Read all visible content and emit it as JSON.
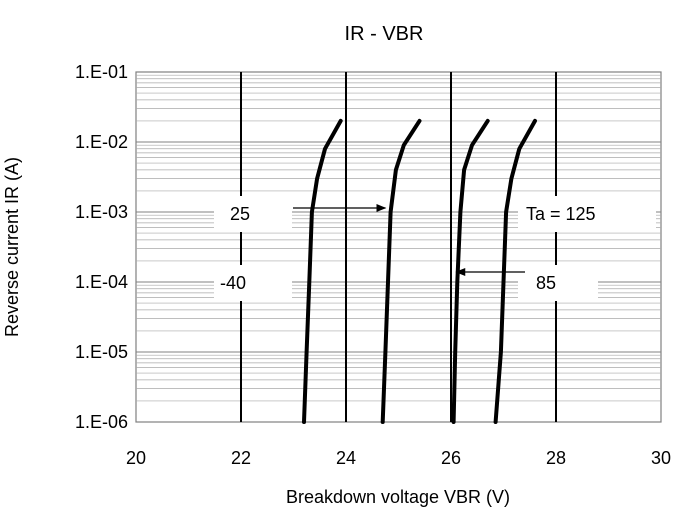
{
  "chart_data": {
    "type": "line",
    "title": "IR - VBR",
    "xlabel": "Breakdown voltage VBR (V)",
    "ylabel": "Reverse current IR (A)",
    "xlim": [
      20,
      30
    ],
    "ylim": [
      1e-06,
      0.1
    ],
    "y_scale": "log",
    "grid": true,
    "x_ticks": [
      "20",
      "22",
      "24",
      "26",
      "28",
      "30"
    ],
    "y_ticks": [
      "1.E-06",
      "1.E-05",
      "1.E-04",
      "1.E-03",
      "1.E-02",
      "1.E-01"
    ],
    "series": [
      {
        "name": "-40",
        "x": [
          23.2,
          23.25,
          23.3,
          23.35,
          23.45,
          23.6,
          23.9
        ],
        "y": [
          1e-06,
          1e-05,
          0.0001,
          0.001,
          0.003,
          0.008,
          0.02
        ]
      },
      {
        "name": "25",
        "x": [
          24.7,
          24.75,
          24.8,
          24.85,
          24.95,
          25.1,
          25.4
        ],
        "y": [
          1e-06,
          1e-05,
          0.0001,
          0.001,
          0.004,
          0.009,
          0.02
        ]
      },
      {
        "name": "85",
        "x": [
          26.05,
          26.08,
          26.12,
          26.18,
          26.25,
          26.4,
          26.7
        ],
        "y": [
          1e-06,
          1e-05,
          0.0001,
          0.001,
          0.004,
          0.009,
          0.02
        ]
      },
      {
        "name": "Ta = 125",
        "x": [
          26.85,
          26.95,
          27.0,
          27.05,
          27.15,
          27.3,
          27.6
        ],
        "y": [
          1e-06,
          1e-05,
          0.0001,
          0.001,
          0.003,
          0.008,
          0.02
        ]
      }
    ],
    "annotations": [
      {
        "text": "25",
        "arrow_to": [
          24.75,
          0.00073
        ]
      },
      {
        "text": "-40"
      },
      {
        "text": "Ta = 125"
      },
      {
        "text": "85",
        "arrow_to": [
          26.1,
          0.000145
        ]
      }
    ]
  }
}
